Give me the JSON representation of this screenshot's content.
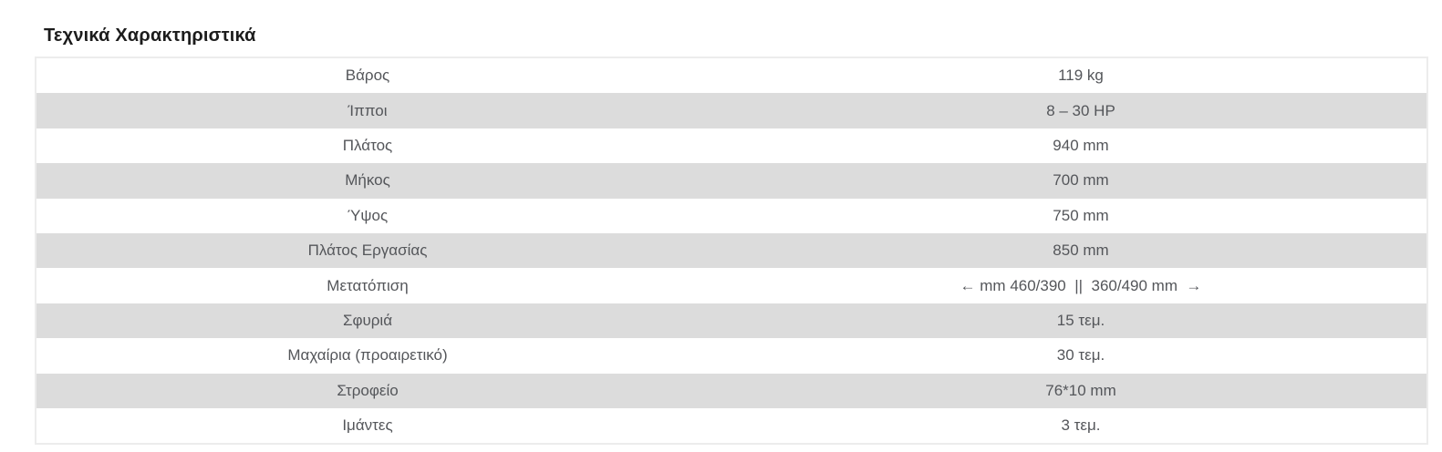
{
  "page": {
    "title": "Τεχνικά Χαρακτηριστικά"
  },
  "table": {
    "rows": [
      {
        "label": "Βάρος",
        "value": "119 kg"
      },
      {
        "label": "Ίπποι",
        "value": "8 – 30 HP"
      },
      {
        "label": "Πλάτος",
        "value": "940 mm"
      },
      {
        "label": "Μήκος",
        "value": "700 mm"
      },
      {
        "label": "Ύψος",
        "value": "750 mm"
      },
      {
        "label": "Πλάτος Εργασίας",
        "value": "850 mm"
      },
      {
        "label": "Μετατόπιση",
        "value": "← mm 460/390  ||  360/490 mm  →"
      },
      {
        "label": "Σφυριά",
        "value": "15 τεμ."
      },
      {
        "label": "Μαχαίρια (προαιρετικό)",
        "value": "30 τεμ."
      },
      {
        "label": "Στροφείο",
        "value": "76*10 mm"
      },
      {
        "label": "Ιμάντες",
        "value": "3 τεμ."
      }
    ]
  },
  "colors": {
    "stripe_row": "#dcdcdc",
    "table_border": "#ececec",
    "body_text": "#54565a",
    "title_text": "#1c1c1c"
  }
}
